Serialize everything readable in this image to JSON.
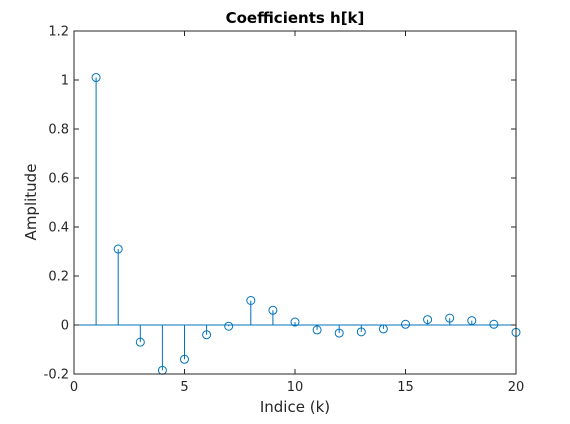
{
  "chart_data": {
    "type": "stem",
    "title": "Coefficients h[k]",
    "xlabel": "Indice (k)",
    "ylabel": "Amplitude",
    "xlim": [
      0,
      20
    ],
    "ylim": [
      -0.2,
      1.2
    ],
    "xticks": [
      0,
      5,
      10,
      15,
      20
    ],
    "yticks": [
      -0.2,
      0,
      0.2,
      0.4,
      0.6,
      0.8,
      1,
      1.2
    ],
    "xtick_labels": [
      "0",
      "5",
      "10",
      "15",
      "20"
    ],
    "ytick_labels": [
      "-0.2",
      "0",
      "0.2",
      "0.4",
      "0.6",
      "0.8",
      "1",
      "1.2"
    ],
    "grid": false,
    "baseline": 0,
    "series": [
      {
        "color": "#0072BD",
        "marker": "open-circle",
        "x": [
          1,
          2,
          3,
          4,
          5,
          6,
          7,
          8,
          9,
          10,
          11,
          12,
          13,
          14,
          15,
          16,
          17,
          18,
          19,
          20
        ],
        "values": [
          1.01,
          0.31,
          -0.07,
          -0.185,
          -0.14,
          -0.04,
          -0.005,
          0.1,
          0.06,
          0.012,
          -0.02,
          -0.033,
          -0.028,
          -0.016,
          0.003,
          0.022,
          0.028,
          0.018,
          0.003,
          -0.03
        ]
      }
    ]
  }
}
